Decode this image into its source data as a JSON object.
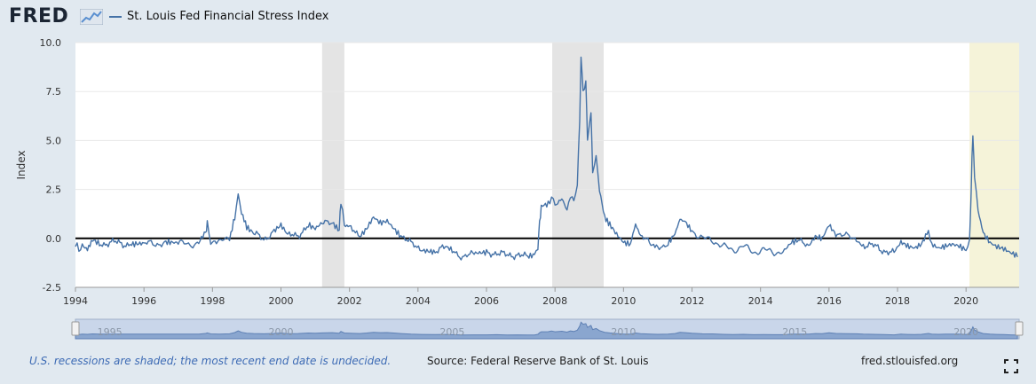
{
  "header": {
    "logo": "FRED",
    "legend_label": "St. Louis Fed Financial Stress Index",
    "series_color": "#4572a7"
  },
  "chart_data": {
    "type": "line",
    "title": "",
    "xlabel": "",
    "ylabel": "Index",
    "xlim": [
      1994.0,
      2021.55
    ],
    "ylim": [
      -2.5,
      10.0
    ],
    "yticks": [
      -2.5,
      0.0,
      2.5,
      5.0,
      7.5,
      10.0
    ],
    "ytick_labels": [
      "-2.5",
      "0.0",
      "2.5",
      "5.0",
      "7.5",
      "10.0"
    ],
    "xticks": [
      1994,
      1996,
      1998,
      2000,
      2002,
      2004,
      2006,
      2008,
      2010,
      2012,
      2014,
      2016,
      2018,
      2020
    ],
    "zero_line": true,
    "recessions": [
      {
        "start": 2001.2,
        "end": 2001.85,
        "label": ""
      },
      {
        "start": 2007.92,
        "end": 2009.42,
        "label": ""
      },
      {
        "start": 2020.1,
        "end": 2021.55,
        "label": "",
        "undecided": true
      }
    ],
    "navigator_ticks": [
      1995,
      2000,
      2005,
      2010,
      2015,
      2020
    ],
    "series": [
      {
        "name": "St. Louis Fed Financial Stress Index",
        "points": [
          [
            1994.0,
            -0.35
          ],
          [
            1994.1,
            -0.6
          ],
          [
            1994.2,
            -0.3
          ],
          [
            1994.35,
            -0.45
          ],
          [
            1994.5,
            -0.1
          ],
          [
            1994.7,
            -0.3
          ],
          [
            1995.0,
            -0.2
          ],
          [
            1995.3,
            -0.25
          ],
          [
            1995.6,
            -0.3
          ],
          [
            1996.0,
            -0.25
          ],
          [
            1996.3,
            -0.3
          ],
          [
            1996.6,
            -0.2
          ],
          [
            1997.0,
            -0.25
          ],
          [
            1997.3,
            -0.3
          ],
          [
            1997.6,
            -0.25
          ],
          [
            1997.8,
            0.3
          ],
          [
            1997.85,
            0.7
          ],
          [
            1997.95,
            -0.1
          ],
          [
            1998.2,
            -0.2
          ],
          [
            1998.5,
            0.0
          ],
          [
            1998.65,
            1.0
          ],
          [
            1998.75,
            2.3
          ],
          [
            1998.85,
            1.2
          ],
          [
            1999.0,
            0.5
          ],
          [
            1999.2,
            0.2
          ],
          [
            1999.5,
            0.0
          ],
          [
            1999.8,
            0.3
          ],
          [
            2000.0,
            0.6
          ],
          [
            2000.2,
            0.1
          ],
          [
            2000.5,
            0.2
          ],
          [
            2000.8,
            0.6
          ],
          [
            2001.0,
            0.4
          ],
          [
            2001.2,
            0.7
          ],
          [
            2001.5,
            0.9
          ],
          [
            2001.7,
            0.5
          ],
          [
            2001.75,
            1.9
          ],
          [
            2001.85,
            0.6
          ],
          [
            2002.0,
            0.5
          ],
          [
            2002.3,
            0.2
          ],
          [
            2002.5,
            0.6
          ],
          [
            2002.7,
            1.2
          ],
          [
            2002.9,
            0.9
          ],
          [
            2003.1,
            1.0
          ],
          [
            2003.3,
            0.6
          ],
          [
            2003.5,
            0.2
          ],
          [
            2003.8,
            -0.3
          ],
          [
            2004.1,
            -0.5
          ],
          [
            2004.5,
            -0.6
          ],
          [
            2004.8,
            -0.5
          ],
          [
            2005.0,
            -0.7
          ],
          [
            2005.3,
            -0.9
          ],
          [
            2005.6,
            -0.85
          ],
          [
            2006.0,
            -0.8
          ],
          [
            2006.3,
            -0.7
          ],
          [
            2006.6,
            -0.9
          ],
          [
            2006.9,
            -0.8
          ],
          [
            2007.2,
            -1.0
          ],
          [
            2007.4,
            -0.9
          ],
          [
            2007.5,
            -0.4
          ],
          [
            2007.55,
            0.8
          ],
          [
            2007.6,
            1.6
          ],
          [
            2007.8,
            1.7
          ],
          [
            2007.9,
            2.2
          ],
          [
            2008.0,
            1.6
          ],
          [
            2008.2,
            2.0
          ],
          [
            2008.35,
            1.3
          ],
          [
            2008.45,
            2.3
          ],
          [
            2008.55,
            1.8
          ],
          [
            2008.65,
            2.8
          ],
          [
            2008.72,
            6.0
          ],
          [
            2008.76,
            9.1
          ],
          [
            2008.82,
            7.5
          ],
          [
            2008.9,
            8.0
          ],
          [
            2008.95,
            5.0
          ],
          [
            2009.05,
            6.5
          ],
          [
            2009.1,
            3.3
          ],
          [
            2009.2,
            4.2
          ],
          [
            2009.3,
            2.5
          ],
          [
            2009.45,
            1.2
          ],
          [
            2009.6,
            0.7
          ],
          [
            2009.8,
            0.2
          ],
          [
            2010.0,
            -0.2
          ],
          [
            2010.2,
            -0.3
          ],
          [
            2010.35,
            0.6
          ],
          [
            2010.5,
            0.1
          ],
          [
            2010.8,
            -0.3
          ],
          [
            2011.0,
            -0.4
          ],
          [
            2011.3,
            -0.3
          ],
          [
            2011.5,
            0.2
          ],
          [
            2011.65,
            1.1
          ],
          [
            2011.8,
            0.9
          ],
          [
            2012.0,
            0.4
          ],
          [
            2012.3,
            0.0
          ],
          [
            2012.6,
            -0.1
          ],
          [
            2012.9,
            -0.4
          ],
          [
            2013.2,
            -0.6
          ],
          [
            2013.5,
            -0.4
          ],
          [
            2013.8,
            -0.7
          ],
          [
            2014.1,
            -0.6
          ],
          [
            2014.4,
            -0.7
          ],
          [
            2014.7,
            -0.7
          ],
          [
            2014.9,
            -0.3
          ],
          [
            2015.1,
            -0.2
          ],
          [
            2015.4,
            -0.3
          ],
          [
            2015.6,
            0.2
          ],
          [
            2015.8,
            0.1
          ],
          [
            2016.0,
            0.8
          ],
          [
            2016.2,
            0.3
          ],
          [
            2016.5,
            0.1
          ],
          [
            2016.8,
            0.0
          ],
          [
            2017.0,
            -0.3
          ],
          [
            2017.3,
            -0.4
          ],
          [
            2017.6,
            -0.6
          ],
          [
            2017.9,
            -0.8
          ],
          [
            2018.1,
            -0.3
          ],
          [
            2018.3,
            -0.5
          ],
          [
            2018.5,
            -0.6
          ],
          [
            2018.7,
            -0.4
          ],
          [
            2018.9,
            0.3
          ],
          [
            2019.0,
            -0.2
          ],
          [
            2019.2,
            -0.4
          ],
          [
            2019.4,
            -0.3
          ],
          [
            2019.6,
            -0.2
          ],
          [
            2019.8,
            -0.3
          ],
          [
            2020.0,
            -0.5
          ],
          [
            2020.1,
            -0.3
          ],
          [
            2020.15,
            2.5
          ],
          [
            2020.2,
            5.4
          ],
          [
            2020.25,
            3.0
          ],
          [
            2020.35,
            1.5
          ],
          [
            2020.5,
            0.2
          ],
          [
            2020.7,
            -0.3
          ],
          [
            2020.9,
            -0.5
          ],
          [
            2021.1,
            -0.6
          ],
          [
            2021.3,
            -0.8
          ],
          [
            2021.5,
            -0.95
          ]
        ]
      }
    ]
  },
  "footer": {
    "recession_note": "U.S. recessions are shaded; the most recent end date is undecided.",
    "source": "Source: Federal Reserve Bank of St. Louis",
    "site": "fred.stlouisfed.org"
  },
  "icons": {
    "fullscreen": "fullscreen-icon",
    "logo_graph": "fred-graph-icon"
  }
}
